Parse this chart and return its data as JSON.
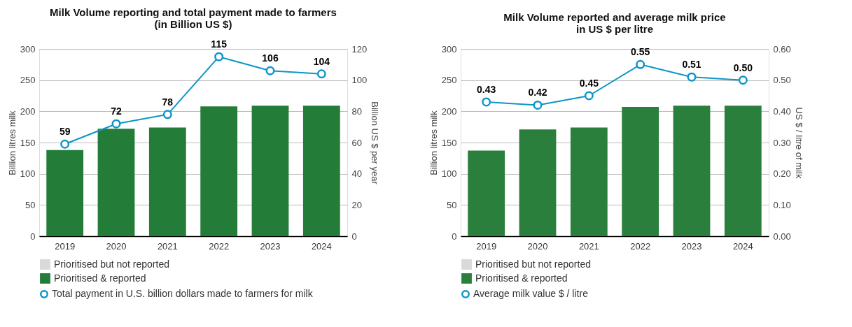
{
  "chart_data": [
    {
      "type": "bar",
      "title": "Milk Volume reporting and total payment made to farmers\n(in Billion US $)",
      "categories": [
        "2019",
        "2020",
        "2021",
        "2022",
        "2023",
        "2024"
      ],
      "ylabel": "Billion litres milk",
      "y2label": "Billion US $ per year",
      "ylim": [
        0,
        300
      ],
      "yticks": [
        0,
        50,
        100,
        150,
        200,
        250,
        300
      ],
      "y2lim": [
        0,
        120
      ],
      "y2ticks": [
        0,
        20,
        40,
        60,
        80,
        100,
        120
      ],
      "grid": "y",
      "legend": "bottom",
      "series": [
        {
          "name": "Prioritised but not reported",
          "color": "#d9d9d9",
          "values": [
            null,
            null,
            null,
            null,
            null,
            null
          ]
        },
        {
          "name": "Prioritised & reported",
          "color": "#237c38",
          "values": [
            138,
            172,
            174,
            208,
            209,
            209
          ]
        },
        {
          "name": "Total payment in U.S. billion dollars made to farmers for milk",
          "color": "#0d95c9",
          "type": "line",
          "axis": "y2",
          "marker": "circle",
          "values": [
            59,
            72,
            78,
            115,
            106,
            104
          ],
          "value_labels": [
            "59",
            "72",
            "78",
            "115",
            "106",
            "104"
          ]
        }
      ]
    },
    {
      "type": "bar",
      "title": "Milk Volume reported and average milk price\nin US $ per litre",
      "categories": [
        "2019",
        "2020",
        "2021",
        "2022",
        "2023",
        "2024"
      ],
      "ylabel": "Billion litres milk",
      "y2label": "US $ / litre of milk",
      "ylim": [
        0,
        300
      ],
      "yticks": [
        0,
        50,
        100,
        150,
        200,
        250,
        300
      ],
      "y2lim": [
        0,
        0.6
      ],
      "y2ticks": [
        {
          "value": 0,
          "label": "0.00"
        },
        {
          "value": 0.1,
          "label": "0.10"
        },
        {
          "value": 0.2,
          "label": "0.20"
        },
        {
          "value": 0.3,
          "label": "0.30"
        },
        {
          "value": 0.4,
          "label": "0.40"
        },
        {
          "value": 0.5,
          "label": "0.50"
        },
        {
          "value": 0.6,
          "label": "0.60"
        }
      ],
      "grid": "y",
      "legend": "bottom",
      "series": [
        {
          "name": "Prioritised but not reported",
          "color": "#d9d9d9",
          "values": [
            null,
            null,
            null,
            null,
            null,
            null
          ]
        },
        {
          "name": "Prioritised & reported",
          "color": "#2a7f3c",
          "values": [
            137,
            171,
            174,
            207,
            209,
            209
          ]
        },
        {
          "name": "Average milk value $ / litre",
          "color": "#0d95c9",
          "type": "line",
          "axis": "y2",
          "marker": "circle",
          "values": [
            0.43,
            0.42,
            0.45,
            0.55,
            0.51,
            0.5
          ],
          "value_labels": [
            "0.43",
            "0.42",
            "0.45",
            "0.55",
            "0.51",
            "0.50"
          ]
        }
      ]
    }
  ]
}
